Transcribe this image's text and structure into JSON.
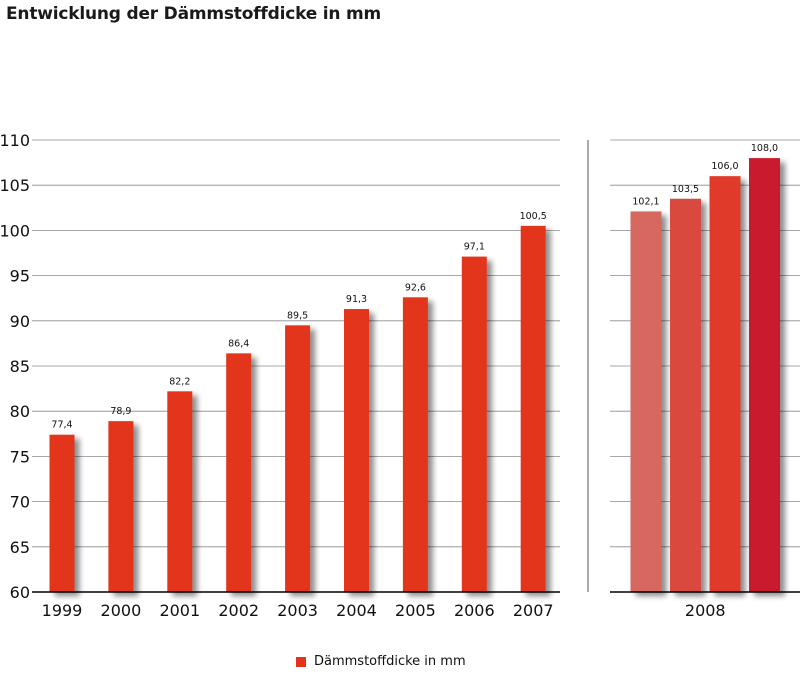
{
  "chart_data": {
    "type": "bar",
    "title": "Entwicklung der Dämmstoffdicke in mm",
    "ylim": [
      60,
      110
    ],
    "yticks": [
      "60",
      "65",
      "70",
      "75",
      "80",
      "85",
      "90",
      "95",
      "100",
      "105",
      "110"
    ],
    "grid": true,
    "legend": {
      "position": "bottom-center",
      "label": "Dämmstoffdicke in mm",
      "color": "#e3341b"
    },
    "main_panel": {
      "categories": [
        "1999",
        "2000",
        "2001",
        "2002",
        "2003",
        "2004",
        "2005",
        "2006",
        "2007"
      ],
      "values": [
        77.4,
        78.9,
        82.2,
        86.4,
        89.5,
        91.3,
        92.6,
        97.1,
        100.5
      ],
      "labels": [
        "77,4",
        "78,9",
        "82,2",
        "86,4",
        "89,5",
        "91,3",
        "92,6",
        "97,1",
        "100,5"
      ],
      "color": "#e3341b"
    },
    "side_panel": {
      "category": "2008",
      "values": [
        102.1,
        103.5,
        106.0,
        108.0
      ],
      "labels": [
        "102,1",
        "103,5",
        "106,0",
        "108,0"
      ],
      "colors": [
        "#d6685e",
        "#d9483c",
        "#e03a2a",
        "#c81d2e"
      ]
    }
  }
}
